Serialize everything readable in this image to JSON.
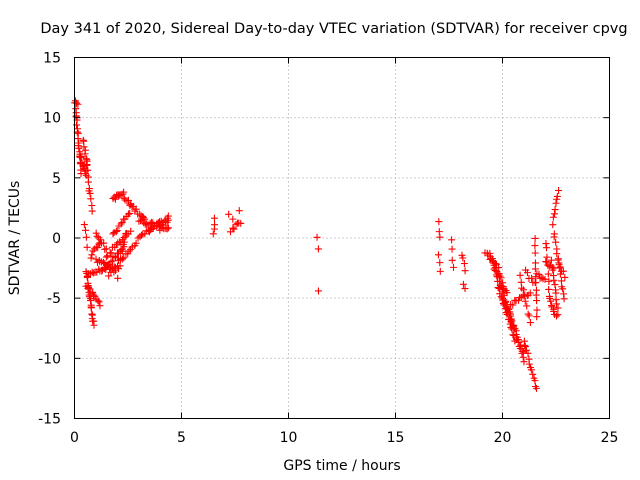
{
  "chart_data": {
    "type": "scatter",
    "title": "Day 341 of 2020, Sidereal Day-to-day VTEC variation (SDTVAR) for receiver cpvg",
    "xlabel": "GPS time / hours",
    "ylabel": "SDTVAR / TECUs",
    "xlim": [
      0,
      25
    ],
    "ylim": [
      -15,
      15
    ],
    "x_ticks": [
      0,
      5,
      10,
      15,
      20,
      25
    ],
    "y_ticks": [
      -15,
      -10,
      -5,
      0,
      5,
      10,
      15
    ],
    "x_tick_labels": [
      "0",
      "5",
      "10",
      "15",
      "20",
      "25"
    ],
    "y_tick_labels": [
      "-15",
      "-10",
      "-5",
      "0",
      "5",
      "10",
      "15"
    ],
    "grid": true,
    "marker": "+",
    "series": [
      {
        "name": "SDTVAR",
        "color": "#ff0000",
        "segments": [
          {
            "x": [
              0.0,
              0.15
            ],
            "y": [
              11.3,
              11.0
            ],
            "n": 5
          },
          {
            "x": [
              0.05,
              0.3
            ],
            "y": [
              10.8,
              5.5
            ],
            "n": 20
          },
          {
            "x": [
              0.25,
              0.55
            ],
            "y": [
              7.0,
              5.2
            ],
            "n": 14
          },
          {
            "x": [
              0.4,
              0.6
            ],
            "y": [
              8.2,
              6.0
            ],
            "n": 8
          },
          {
            "x": [
              0.55,
              0.7
            ],
            "y": [
              6.5,
              4.0
            ],
            "n": 6
          },
          {
            "x": [
              0.7,
              0.85
            ],
            "y": [
              4.0,
              2.3
            ],
            "n": 5
          },
          {
            "x": [
              0.45,
              0.6
            ],
            "y": [
              1.0,
              -0.6
            ],
            "n": 4
          },
          {
            "x": [
              0.55,
              0.9
            ],
            "y": [
              -2.8,
              -7.2
            ],
            "n": 22
          },
          {
            "x": [
              0.55,
              1.2
            ],
            "y": [
              -4.0,
              -5.5
            ],
            "n": 12
          },
          {
            "x": [
              0.6,
              1.4
            ],
            "y": [
              -3.0,
              -2.6
            ],
            "n": 12
          },
          {
            "x": [
              0.75,
              1.2
            ],
            "y": [
              -1.5,
              -0.5
            ],
            "n": 8
          },
          {
            "x": [
              1.0,
              1.9
            ],
            "y": [
              -1.8,
              -2.8
            ],
            "n": 14
          },
          {
            "x": [
              1.0,
              1.5
            ],
            "y": [
              0.5,
              -1.0
            ],
            "n": 8
          },
          {
            "x": [
              1.4,
              2.3
            ],
            "y": [
              -2.6,
              -0.8
            ],
            "n": 16
          },
          {
            "x": [
              1.5,
              2.6
            ],
            "y": [
              -1.5,
              0.6
            ],
            "n": 16
          },
          {
            "x": [
              1.6,
              2.8
            ],
            "y": [
              -3.0,
              -0.5
            ],
            "n": 16
          },
          {
            "x": [
              1.8,
              2.6
            ],
            "y": [
              0.2,
              2.2
            ],
            "n": 12
          },
          {
            "x": [
              2.0,
              2.4
            ],
            "y": [
              -3.2,
              0.3
            ],
            "n": 8
          },
          {
            "x": [
              1.8,
              2.3
            ],
            "y": [
              3.3,
              3.7
            ],
            "n": 10
          },
          {
            "x": [
              2.3,
              3.3
            ],
            "y": [
              3.3,
              1.6
            ],
            "n": 16
          },
          {
            "x": [
              3.0,
              4.4
            ],
            "y": [
              1.4,
              0.9
            ],
            "n": 20
          },
          {
            "x": [
              2.9,
              3.6
            ],
            "y": [
              -0.3,
              0.9
            ],
            "n": 10
          },
          {
            "x": [
              3.5,
              4.4
            ],
            "y": [
              0.7,
              1.7
            ],
            "n": 12
          },
          {
            "x": [
              4.0,
              4.4
            ],
            "y": [
              0.5,
              1.6
            ],
            "n": 6
          },
          {
            "x": [
              6.5,
              6.55
            ],
            "y": [
              0.4,
              1.6
            ],
            "n": 4
          },
          {
            "x": [
              7.2,
              7.4
            ],
            "y": [
              2.0,
              1.6
            ],
            "n": 2
          },
          {
            "x": [
              7.3,
              7.7
            ],
            "y": [
              0.6,
              1.3
            ],
            "n": 6
          },
          {
            "x": [
              7.7,
              7.75
            ],
            "y": [
              2.1,
              1.1
            ],
            "n": 2
          },
          {
            "x": [
              11.35,
              11.4
            ],
            "y": [
              0.0,
              -0.9
            ],
            "n": 2
          },
          {
            "x": [
              11.4,
              11.4
            ],
            "y": [
              -4.4,
              -4.4
            ],
            "n": 1
          },
          {
            "x": [
              17.0,
              17.05
            ],
            "y": [
              1.2,
              0.2
            ],
            "n": 3
          },
          {
            "x": [
              17.0,
              17.1
            ],
            "y": [
              -1.5,
              -2.7
            ],
            "n": 3
          },
          {
            "x": [
              17.6,
              17.7
            ],
            "y": [
              -0.2,
              -2.6
            ],
            "n": 4
          },
          {
            "x": [
              18.1,
              18.25
            ],
            "y": [
              -1.4,
              -2.6
            ],
            "n": 4
          },
          {
            "x": [
              18.15,
              18.25
            ],
            "y": [
              -3.9,
              -4.2
            ],
            "n": 2
          },
          {
            "x": [
              19.2,
              19.8
            ],
            "y": [
              -1.3,
              -2.3
            ],
            "n": 10
          },
          {
            "x": [
              19.4,
              20.2
            ],
            "y": [
              -1.4,
              -4.5
            ],
            "n": 16
          },
          {
            "x": [
              19.6,
              20.4
            ],
            "y": [
              -2.5,
              -6.5
            ],
            "n": 18
          },
          {
            "x": [
              19.8,
              20.6
            ],
            "y": [
              -4.0,
              -8.5
            ],
            "n": 18
          },
          {
            "x": [
              20.0,
              21.0
            ],
            "y": [
              -5.0,
              -9.5
            ],
            "n": 20
          },
          {
            "x": [
              20.3,
              21.0
            ],
            "y": [
              -6.0,
              -10.2
            ],
            "n": 14
          },
          {
            "x": [
              20.4,
              21.3
            ],
            "y": [
              -5.5,
              -4.5
            ],
            "n": 12
          },
          {
            "x": [
              20.8,
              21.3
            ],
            "y": [
              -3.2,
              -7.0
            ],
            "n": 10
          },
          {
            "x": [
              21.0,
              21.6
            ],
            "y": [
              -8.5,
              -12.5
            ],
            "n": 14
          },
          {
            "x": [
              21.1,
              21.5
            ],
            "y": [
              -2.8,
              -3.8
            ],
            "n": 6
          },
          {
            "x": [
              21.5,
              21.6
            ],
            "y": [
              -0.2,
              -6.5
            ],
            "n": 12
          },
          {
            "x": [
              21.6,
              22.0
            ],
            "y": [
              -3.0,
              -3.6
            ],
            "n": 6
          },
          {
            "x": [
              22.0,
              22.4
            ],
            "y": [
              -2.0,
              -2.5
            ],
            "n": 6
          },
          {
            "x": [
              22.05,
              22.2
            ],
            "y": [
              -0.3,
              -5.0
            ],
            "n": 8
          },
          {
            "x": [
              22.2,
              22.5
            ],
            "y": [
              -5.0,
              -6.6
            ],
            "n": 8
          },
          {
            "x": [
              22.35,
              22.6
            ],
            "y": [
              1.2,
              4.0
            ],
            "n": 8
          },
          {
            "x": [
              22.3,
              22.6
            ],
            "y": [
              -2.0,
              -6.2
            ],
            "n": 12
          },
          {
            "x": [
              22.4,
              22.9
            ],
            "y": [
              0.4,
              -5.2
            ],
            "n": 14
          },
          {
            "x": [
              22.6,
              22.9
            ],
            "y": [
              -1.8,
              -3.2
            ],
            "n": 6
          }
        ]
      }
    ]
  }
}
